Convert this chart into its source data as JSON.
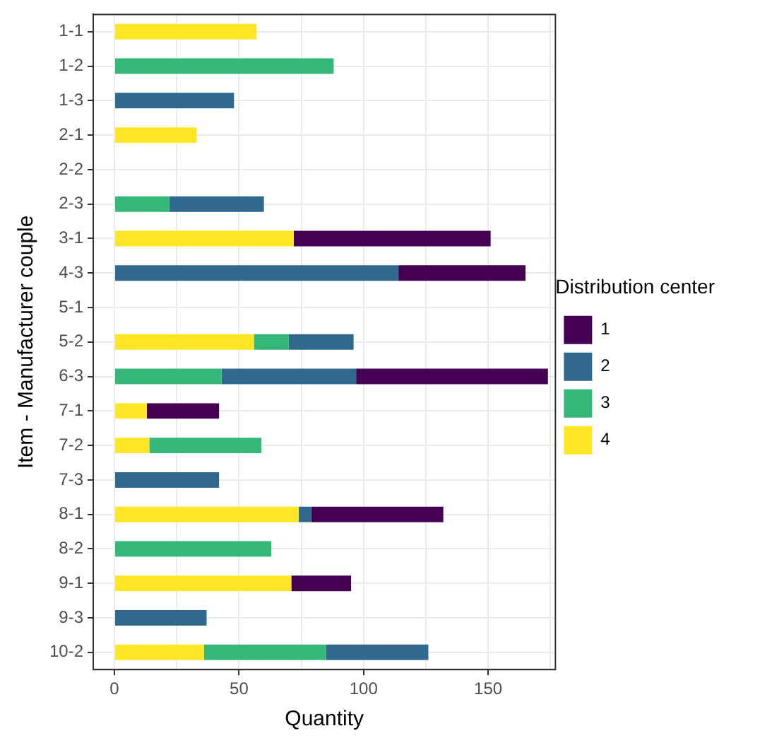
{
  "chart_data": {
    "type": "bar",
    "orientation": "horizontal",
    "stacked": true,
    "xlabel": "Quantity",
    "ylabel": "Item - Manufacturer couple",
    "legend_title": "Distribution center",
    "categories": [
      "1-1",
      "1-2",
      "1-3",
      "2-1",
      "2-2",
      "2-3",
      "3-1",
      "4-3",
      "5-1",
      "5-2",
      "6-3",
      "7-1",
      "7-2",
      "7-3",
      "8-1",
      "8-2",
      "9-1",
      "9-3",
      "10-2"
    ],
    "series": [
      {
        "name": "4",
        "color": "#fde725",
        "values": [
          57,
          null,
          null,
          33,
          null,
          null,
          72,
          null,
          null,
          56,
          null,
          13,
          14,
          null,
          74,
          null,
          71,
          null,
          36
        ]
      },
      {
        "name": "3",
        "color": "#35b779",
        "values": [
          null,
          88,
          null,
          null,
          null,
          22,
          null,
          null,
          null,
          14,
          43,
          null,
          45,
          null,
          null,
          63,
          null,
          null,
          49
        ]
      },
      {
        "name": "2",
        "color": "#31688e",
        "values": [
          null,
          null,
          48,
          null,
          null,
          38,
          null,
          114,
          null,
          26,
          54,
          null,
          null,
          42,
          5,
          null,
          null,
          37,
          41
        ]
      },
      {
        "name": "1",
        "color": "#440154",
        "values": [
          null,
          null,
          null,
          null,
          null,
          null,
          79,
          51,
          null,
          null,
          77,
          29,
          null,
          null,
          53,
          null,
          24,
          null,
          null
        ]
      }
    ],
    "xlim": [
      -8.5,
      177
    ],
    "xticks": [
      0,
      {
        "value": 25,
        "label": null
      },
      50,
      {
        "value": 75,
        "label": null
      },
      100,
      {
        "value": 125,
        "label": null
      },
      150,
      {
        "value": 175,
        "label": null
      }
    ],
    "grid": true,
    "legend": "right"
  }
}
